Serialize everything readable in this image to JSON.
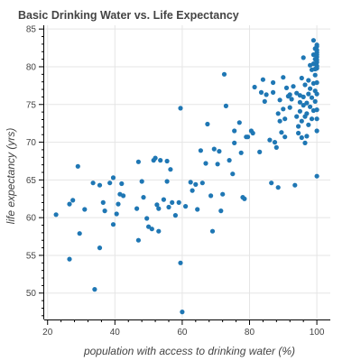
{
  "chart_data": {
    "type": "scatter",
    "title": "Basic Drinking Water vs. Life Expectancy",
    "xlabel": "population with access to drinking water (%)",
    "ylabel": "life expectancy (yrs)",
    "xlim": [
      19,
      104
    ],
    "ylim": [
      46.5,
      85.5
    ],
    "xticks": [
      20,
      40,
      60,
      80,
      100
    ],
    "yticks": [
      50,
      55,
      60,
      65,
      70,
      75,
      80,
      85
    ],
    "grid": true,
    "point_color": "#1f77b4",
    "points": [
      {
        "x": 22.5,
        "y": 60.4
      },
      {
        "x": 26.5,
        "y": 54.5
      },
      {
        "x": 26.5,
        "y": 61.8
      },
      {
        "x": 27.5,
        "y": 62.3
      },
      {
        "x": 29,
        "y": 66.8
      },
      {
        "x": 29.5,
        "y": 57.9
      },
      {
        "x": 31,
        "y": 61.1
      },
      {
        "x": 33.5,
        "y": 64.6
      },
      {
        "x": 34,
        "y": 50.5
      },
      {
        "x": 35.5,
        "y": 56
      },
      {
        "x": 35.5,
        "y": 64.3
      },
      {
        "x": 36.5,
        "y": 62
      },
      {
        "x": 37,
        "y": 60.9
      },
      {
        "x": 38.5,
        "y": 64.6
      },
      {
        "x": 39.5,
        "y": 59.1
      },
      {
        "x": 39.5,
        "y": 65.3
      },
      {
        "x": 40.5,
        "y": 60.5
      },
      {
        "x": 41,
        "y": 61.8
      },
      {
        "x": 41.5,
        "y": 63.1
      },
      {
        "x": 42,
        "y": 64.5
      },
      {
        "x": 42.5,
        "y": 62.9
      },
      {
        "x": 46.5,
        "y": 61.2
      },
      {
        "x": 47,
        "y": 67.4
      },
      {
        "x": 47,
        "y": 57
      },
      {
        "x": 48,
        "y": 64.8
      },
      {
        "x": 48.5,
        "y": 62.7
      },
      {
        "x": 49.5,
        "y": 59.9
      },
      {
        "x": 50,
        "y": 58.8
      },
      {
        "x": 51,
        "y": 58.5
      },
      {
        "x": 51.5,
        "y": 67.6
      },
      {
        "x": 52,
        "y": 67.9
      },
      {
        "x": 52.5,
        "y": 61.7
      },
      {
        "x": 53,
        "y": 61.2
      },
      {
        "x": 53,
        "y": 58.2
      },
      {
        "x": 53.5,
        "y": 67.6
      },
      {
        "x": 54.5,
        "y": 62.4
      },
      {
        "x": 55.5,
        "y": 64.8
      },
      {
        "x": 55.5,
        "y": 67.5
      },
      {
        "x": 56,
        "y": 61.4
      },
      {
        "x": 56.5,
        "y": 66.4
      },
      {
        "x": 57,
        "y": 62
      },
      {
        "x": 58,
        "y": 60.3
      },
      {
        "x": 59,
        "y": 62
      },
      {
        "x": 59.5,
        "y": 74.5
      },
      {
        "x": 59.5,
        "y": 54
      },
      {
        "x": 60,
        "y": 47.5
      },
      {
        "x": 61,
        "y": 61.5
      },
      {
        "x": 62.5,
        "y": 64.7
      },
      {
        "x": 63,
        "y": 63.6
      },
      {
        "x": 64,
        "y": 64.4
      },
      {
        "x": 64.5,
        "y": 61.1
      },
      {
        "x": 65.5,
        "y": 68.9
      },
      {
        "x": 66,
        "y": 64.6
      },
      {
        "x": 67,
        "y": 67.2
      },
      {
        "x": 67.5,
        "y": 72.4
      },
      {
        "x": 68.5,
        "y": 62.9
      },
      {
        "x": 69,
        "y": 58.2
      },
      {
        "x": 69.5,
        "y": 69.1
      },
      {
        "x": 70.5,
        "y": 67.1
      },
      {
        "x": 71,
        "y": 68.8
      },
      {
        "x": 71.5,
        "y": 60.9
      },
      {
        "x": 72,
        "y": 63.1
      },
      {
        "x": 72.5,
        "y": 79
      },
      {
        "x": 73,
        "y": 74.8
      },
      {
        "x": 74,
        "y": 67.6
      },
      {
        "x": 75,
        "y": 65.8
      },
      {
        "x": 75.5,
        "y": 69.9
      },
      {
        "x": 75.5,
        "y": 71.5
      },
      {
        "x": 77,
        "y": 72.6
      },
      {
        "x": 77.5,
        "y": 68.6
      },
      {
        "x": 78,
        "y": 62.7
      },
      {
        "x": 78.5,
        "y": 62.5
      },
      {
        "x": 79,
        "y": 70.7
      },
      {
        "x": 79.5,
        "y": 70.7
      },
      {
        "x": 80.5,
        "y": 71.5
      },
      {
        "x": 81,
        "y": 71.2
      },
      {
        "x": 81.5,
        "y": 77.3
      },
      {
        "x": 83,
        "y": 68.7
      },
      {
        "x": 83.5,
        "y": 76.6
      },
      {
        "x": 84,
        "y": 78.3
      },
      {
        "x": 84.5,
        "y": 75.4
      },
      {
        "x": 85,
        "y": 76.3
      },
      {
        "x": 86,
        "y": 70.3
      },
      {
        "x": 86.5,
        "y": 64.6
      },
      {
        "x": 87,
        "y": 76.6
      },
      {
        "x": 87,
        "y": 77.9
      },
      {
        "x": 87.5,
        "y": 70
      },
      {
        "x": 88,
        "y": 69.3
      },
      {
        "x": 88.5,
        "y": 64
      },
      {
        "x": 88.5,
        "y": 73.8
      },
      {
        "x": 89,
        "y": 75.6
      },
      {
        "x": 89,
        "y": 72.8
      },
      {
        "x": 89.5,
        "y": 71.3
      },
      {
        "x": 90,
        "y": 74.4
      },
      {
        "x": 90,
        "y": 78.6
      },
      {
        "x": 90.5,
        "y": 73.1
      },
      {
        "x": 90.5,
        "y": 70.7
      },
      {
        "x": 91,
        "y": 77.2
      },
      {
        "x": 91.5,
        "y": 76.1
      },
      {
        "x": 92,
        "y": 76.3
      },
      {
        "x": 92,
        "y": 74.6
      },
      {
        "x": 92.5,
        "y": 75.7
      },
      {
        "x": 93,
        "y": 77.4
      },
      {
        "x": 93.5,
        "y": 64.3
      },
      {
        "x": 94,
        "y": 76.5
      },
      {
        "x": 94,
        "y": 73.4
      },
      {
        "x": 94.5,
        "y": 72.1
      },
      {
        "x": 94.5,
        "y": 71.2
      },
      {
        "x": 95,
        "y": 75.3
      },
      {
        "x": 95,
        "y": 76.2
      },
      {
        "x": 95,
        "y": 74.1
      },
      {
        "x": 95.5,
        "y": 72.8
      },
      {
        "x": 95.5,
        "y": 78.5
      },
      {
        "x": 95.5,
        "y": 70.6
      },
      {
        "x": 96,
        "y": 81.2
      },
      {
        "x": 96,
        "y": 74.9
      },
      {
        "x": 96,
        "y": 76
      },
      {
        "x": 96.5,
        "y": 69.9
      },
      {
        "x": 96.5,
        "y": 73.4
      },
      {
        "x": 96.5,
        "y": 77.6
      },
      {
        "x": 97,
        "y": 75.2
      },
      {
        "x": 97,
        "y": 73.8
      },
      {
        "x": 97,
        "y": 70.8
      },
      {
        "x": 97.5,
        "y": 78.2
      },
      {
        "x": 97.5,
        "y": 76.4
      },
      {
        "x": 97.5,
        "y": 72.3
      },
      {
        "x": 98,
        "y": 80.2
      },
      {
        "x": 98,
        "y": 74.7
      },
      {
        "x": 98,
        "y": 77.1
      },
      {
        "x": 98.5,
        "y": 75.9
      },
      {
        "x": 98.5,
        "y": 73.1
      },
      {
        "x": 98.5,
        "y": 79.6
      },
      {
        "x": 99,
        "y": 81.6
      },
      {
        "x": 99,
        "y": 77.8
      },
      {
        "x": 99,
        "y": 80.4
      },
      {
        "x": 99,
        "y": 74.2
      },
      {
        "x": 99,
        "y": 83.5
      },
      {
        "x": 99.5,
        "y": 82.4
      },
      {
        "x": 99.5,
        "y": 81
      },
      {
        "x": 99.5,
        "y": 79.7
      },
      {
        "x": 99.5,
        "y": 76.8
      },
      {
        "x": 99.5,
        "y": 75.4
      },
      {
        "x": 99.5,
        "y": 78.9
      },
      {
        "x": 100,
        "y": 82.7
      },
      {
        "x": 100,
        "y": 81.9
      },
      {
        "x": 100,
        "y": 81.3
      },
      {
        "x": 100,
        "y": 80.6
      },
      {
        "x": 100,
        "y": 80.1
      },
      {
        "x": 100,
        "y": 82.2
      },
      {
        "x": 100,
        "y": 82.9
      },
      {
        "x": 100,
        "y": 81.6
      },
      {
        "x": 100,
        "y": 80.9
      },
      {
        "x": 100,
        "y": 79.8
      },
      {
        "x": 100,
        "y": 77.9
      },
      {
        "x": 100,
        "y": 76.4
      },
      {
        "x": 100,
        "y": 74.3
      },
      {
        "x": 100,
        "y": 73.1
      },
      {
        "x": 100,
        "y": 71.5
      },
      {
        "x": 100,
        "y": 65.5
      }
    ]
  }
}
